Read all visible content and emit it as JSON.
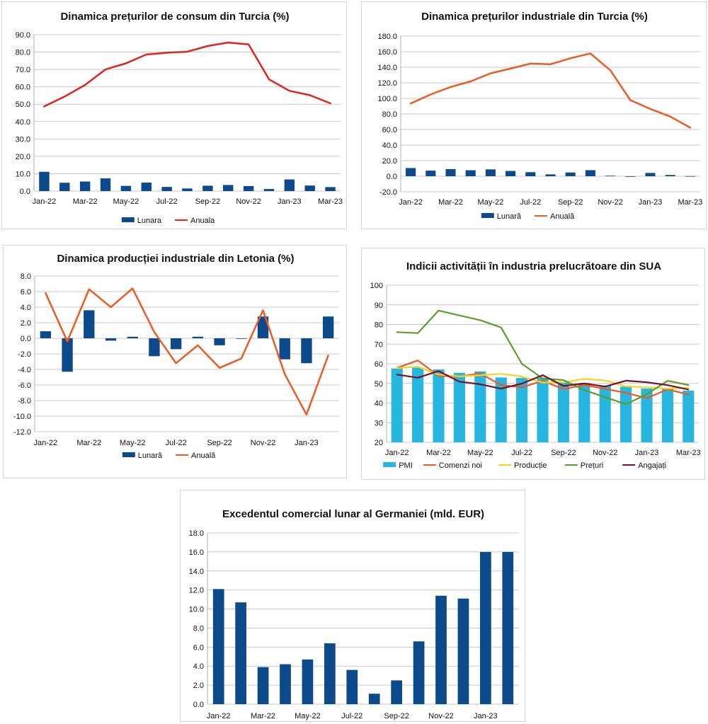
{
  "charts": [
    {
      "id": "p1",
      "chart_data": {
        "type": "bar+line",
        "title": "Dinamica prețurilor de consum din Turcia (%)",
        "categories": [
          "Jan-22",
          "Feb-22",
          "Mar-22",
          "Apr-22",
          "May-22",
          "Jun-22",
          "Jul-22",
          "Aug-22",
          "Sep-22",
          "Oct-22",
          "Nov-22",
          "Dec-22",
          "Jan-23",
          "Feb-23",
          "Mar-23"
        ],
        "x_tick_labels": [
          "Jan-22",
          "Mar-22",
          "May-22",
          "Jul-22",
          "Sep-22",
          "Nov-22",
          "Jan-23",
          "Mar-23"
        ],
        "ylim": [
          0,
          90
        ],
        "y_ticks": [
          0,
          10,
          20,
          30,
          40,
          50,
          60,
          70,
          80,
          90
        ],
        "y_tick_labels": [
          "0.0",
          "10.0",
          "20.0",
          "30.0",
          "40.0",
          "50.0",
          "60.0",
          "70.0",
          "80.0",
          "90.0"
        ],
        "series": [
          {
            "name": "Lunara",
            "kind": "bar",
            "color": "#0c4a8c",
            "values": [
              11.1,
              4.8,
              5.5,
              7.3,
              3.0,
              4.9,
              2.4,
              1.5,
              3.1,
              3.5,
              2.9,
              1.2,
              6.7,
              3.2,
              2.3
            ]
          },
          {
            "name": "Anuala",
            "kind": "line",
            "color": "#e3221f",
            "values": [
              48.7,
              54.4,
              61.1,
              70.0,
              73.5,
              78.6,
              79.6,
              80.2,
              83.5,
              85.5,
              84.4,
              64.3,
              57.7,
              55.2,
              50.5
            ]
          }
        ],
        "legend": [
          "Lunara",
          "Anuala"
        ]
      }
    },
    {
      "id": "p2",
      "chart_data": {
        "type": "bar+line",
        "title": "Dinamica prețurilor industriale din Turcia (%)",
        "categories": [
          "Jan-22",
          "Feb-22",
          "Mar-22",
          "Apr-22",
          "May-22",
          "Jun-22",
          "Jul-22",
          "Aug-22",
          "Sep-22",
          "Oct-22",
          "Nov-22",
          "Dec-22",
          "Jan-23",
          "Feb-23",
          "Mar-23"
        ],
        "x_tick_labels": [
          "Jan-22",
          "Mar-22",
          "May-22",
          "Jul-22",
          "Sep-22",
          "Nov-22",
          "Jan-23",
          "Mar-23"
        ],
        "ylim": [
          -20,
          180
        ],
        "y_ticks": [
          -20,
          0,
          20,
          40,
          60,
          80,
          100,
          120,
          140,
          160,
          180
        ],
        "y_tick_labels": [
          "-20.0",
          "0.0",
          "20.0",
          "40.0",
          "60.0",
          "80.0",
          "100.0",
          "120.0",
          "140.0",
          "160.0",
          "180.0"
        ],
        "series": [
          {
            "name": "Lunară",
            "kind": "bar",
            "color": "#0c4a8c",
            "values": [
              10.5,
              7.2,
              9.2,
              7.7,
              8.8,
              6.8,
              5.2,
              2.4,
              4.8,
              7.8,
              0.7,
              -0.2,
              4.2,
              1.6,
              0.2
            ]
          },
          {
            "name": "Anuală",
            "kind": "line",
            "color": "#ee5a24",
            "values": [
              93.5,
              105.0,
              114.6,
              121.8,
              132.2,
              138.3,
              144.6,
              143.8,
              151.5,
              157.7,
              136.0,
              97.7,
              86.5,
              76.6,
              62.4
            ]
          }
        ],
        "legend": [
          "Lunară",
          "Anuală"
        ]
      }
    },
    {
      "id": "p3",
      "chart_data": {
        "type": "bar+line",
        "title": "Dinamica producției industriale din Letonia (%)",
        "categories": [
          "Jan-22",
          "Feb-22",
          "Mar-22",
          "Apr-22",
          "May-22",
          "Jun-22",
          "Jul-22",
          "Aug-22",
          "Sep-22",
          "Oct-22",
          "Nov-22",
          "Dec-22",
          "Jan-23",
          "Feb-23"
        ],
        "x_tick_labels": [
          "Jan-22",
          "Mar-22",
          "May-22",
          "Jul-22",
          "Sep-22",
          "Nov-22",
          "Jan-23"
        ],
        "ylim": [
          -12,
          8
        ],
        "y_ticks": [
          -12,
          -10,
          -8,
          -6,
          -4,
          -2,
          0,
          2,
          4,
          6,
          8
        ],
        "y_tick_labels": [
          "-12.0",
          "-10.0",
          "-8.0",
          "-6.0",
          "-4.0",
          "-2.0",
          "0.0",
          "2.0",
          "4.0",
          "6.0",
          "8.0"
        ],
        "series": [
          {
            "name": "Lunară",
            "kind": "bar",
            "color": "#0c4a8c",
            "values": [
              0.9,
              -4.3,
              3.6,
              -0.3,
              0.2,
              -2.3,
              -1.4,
              0.2,
              -0.9,
              0.0,
              2.8,
              -2.7,
              -3.2,
              2.8
            ]
          },
          {
            "name": "Anuală",
            "kind": "line",
            "color": "#ee5a24",
            "values": [
              5.8,
              -0.4,
              6.3,
              4.0,
              6.4,
              0.8,
              -3.2,
              -0.9,
              -3.8,
              -2.6,
              3.6,
              -4.6,
              -9.8,
              -2.2
            ]
          }
        ],
        "legend": [
          "Lunară",
          "Anuală"
        ]
      }
    },
    {
      "id": "p4",
      "chart_data": {
        "type": "bar+line",
        "title": "Indicii activității în industria prelucrătoare din SUA",
        "categories": [
          "Jan-22",
          "Feb-22",
          "Mar-22",
          "Apr-22",
          "May-22",
          "Jun-22",
          "Jul-22",
          "Aug-22",
          "Sep-22",
          "Oct-22",
          "Nov-22",
          "Dec-22",
          "Jan-23",
          "Feb-23",
          "Mar-23"
        ],
        "x_tick_labels": [
          "Jan-22",
          "Mar-22",
          "May-22",
          "Jul-22",
          "Sep-22",
          "Nov-22",
          "Jan-23",
          "Mar-23"
        ],
        "ylim": [
          20,
          100
        ],
        "y_ticks": [
          20,
          30,
          40,
          50,
          60,
          70,
          80,
          90,
          100
        ],
        "y_tick_labels": [
          "20",
          "30",
          "40",
          "50",
          "60",
          "70",
          "80",
          "90",
          "100"
        ],
        "series": [
          {
            "name": "PMI",
            "kind": "bar",
            "color": "#27b6e0",
            "values": [
              57.6,
              58.0,
              57.1,
              55.4,
              56.1,
              53.0,
              52.8,
              52.8,
              50.9,
              50.2,
              49.0,
              48.4,
              47.4,
              47.7,
              46.3
            ]
          },
          {
            "name": "Comenzi noi",
            "kind": "line",
            "color": "#ee5a24",
            "values": [
              57.9,
              61.7,
              53.8,
              53.5,
              55.1,
              49.2,
              48.0,
              51.3,
              47.1,
              49.2,
              47.2,
              45.2,
              42.5,
              47.0,
              44.3
            ]
          },
          {
            "name": "Producție",
            "kind": "line",
            "color": "#f5d327",
            "values": [
              57.8,
              58.5,
              54.5,
              53.6,
              54.2,
              54.9,
              53.5,
              50.4,
              50.6,
              52.3,
              51.5,
              48.5,
              48.0,
              47.3,
              47.8
            ]
          },
          {
            "name": "Prețuri",
            "kind": "line",
            "color": "#5c9e2e",
            "values": [
              76.1,
              75.6,
              87.1,
              84.6,
              82.2,
              78.5,
              60.0,
              52.5,
              51.7,
              46.6,
              43.0,
              39.4,
              44.5,
              51.3,
              49.2
            ]
          },
          {
            "name": "Angajați",
            "kind": "line",
            "color": "#7a0f28",
            "values": [
              54.5,
              52.9,
              56.3,
              50.9,
              49.6,
              47.3,
              49.9,
              54.2,
              48.7,
              50.0,
              48.4,
              51.4,
              50.6,
              49.1,
              46.9
            ]
          }
        ],
        "legend": [
          "PMI",
          "Comenzi noi",
          "Producție",
          "Prețuri",
          "Angajați"
        ]
      }
    },
    {
      "id": "p5",
      "chart_data": {
        "type": "bar",
        "title": "Excedentul comercial lunar al Germaniei (mld. EUR)",
        "categories": [
          "Jan-22",
          "Feb-22",
          "Mar-22",
          "Apr-22",
          "May-22",
          "Jun-22",
          "Jul-22",
          "Aug-22",
          "Sep-22",
          "Oct-22",
          "Nov-22",
          "Dec-22",
          "Jan-23",
          "Feb-23"
        ],
        "x_tick_labels": [
          "Jan-22",
          "Mar-22",
          "May-22",
          "Jul-22",
          "Sep-22",
          "Nov-22",
          "Jan-23"
        ],
        "ylim": [
          0,
          18
        ],
        "y_ticks": [
          0,
          2,
          4,
          6,
          8,
          10,
          12,
          14,
          16,
          18
        ],
        "y_tick_labels": [
          "0.0",
          "2.0",
          "4.0",
          "6.0",
          "8.0",
          "10.0",
          "12.0",
          "14.0",
          "16.0",
          "18.0"
        ],
        "series": [
          {
            "name": "Excedent",
            "kind": "bar",
            "color": "#0c4a8c",
            "values": [
              12.1,
              10.7,
              3.9,
              4.2,
              4.7,
              6.4,
              3.6,
              1.1,
              2.5,
              6.6,
              11.4,
              11.1,
              16.0,
              16.0
            ]
          }
        ],
        "legend": []
      }
    }
  ]
}
